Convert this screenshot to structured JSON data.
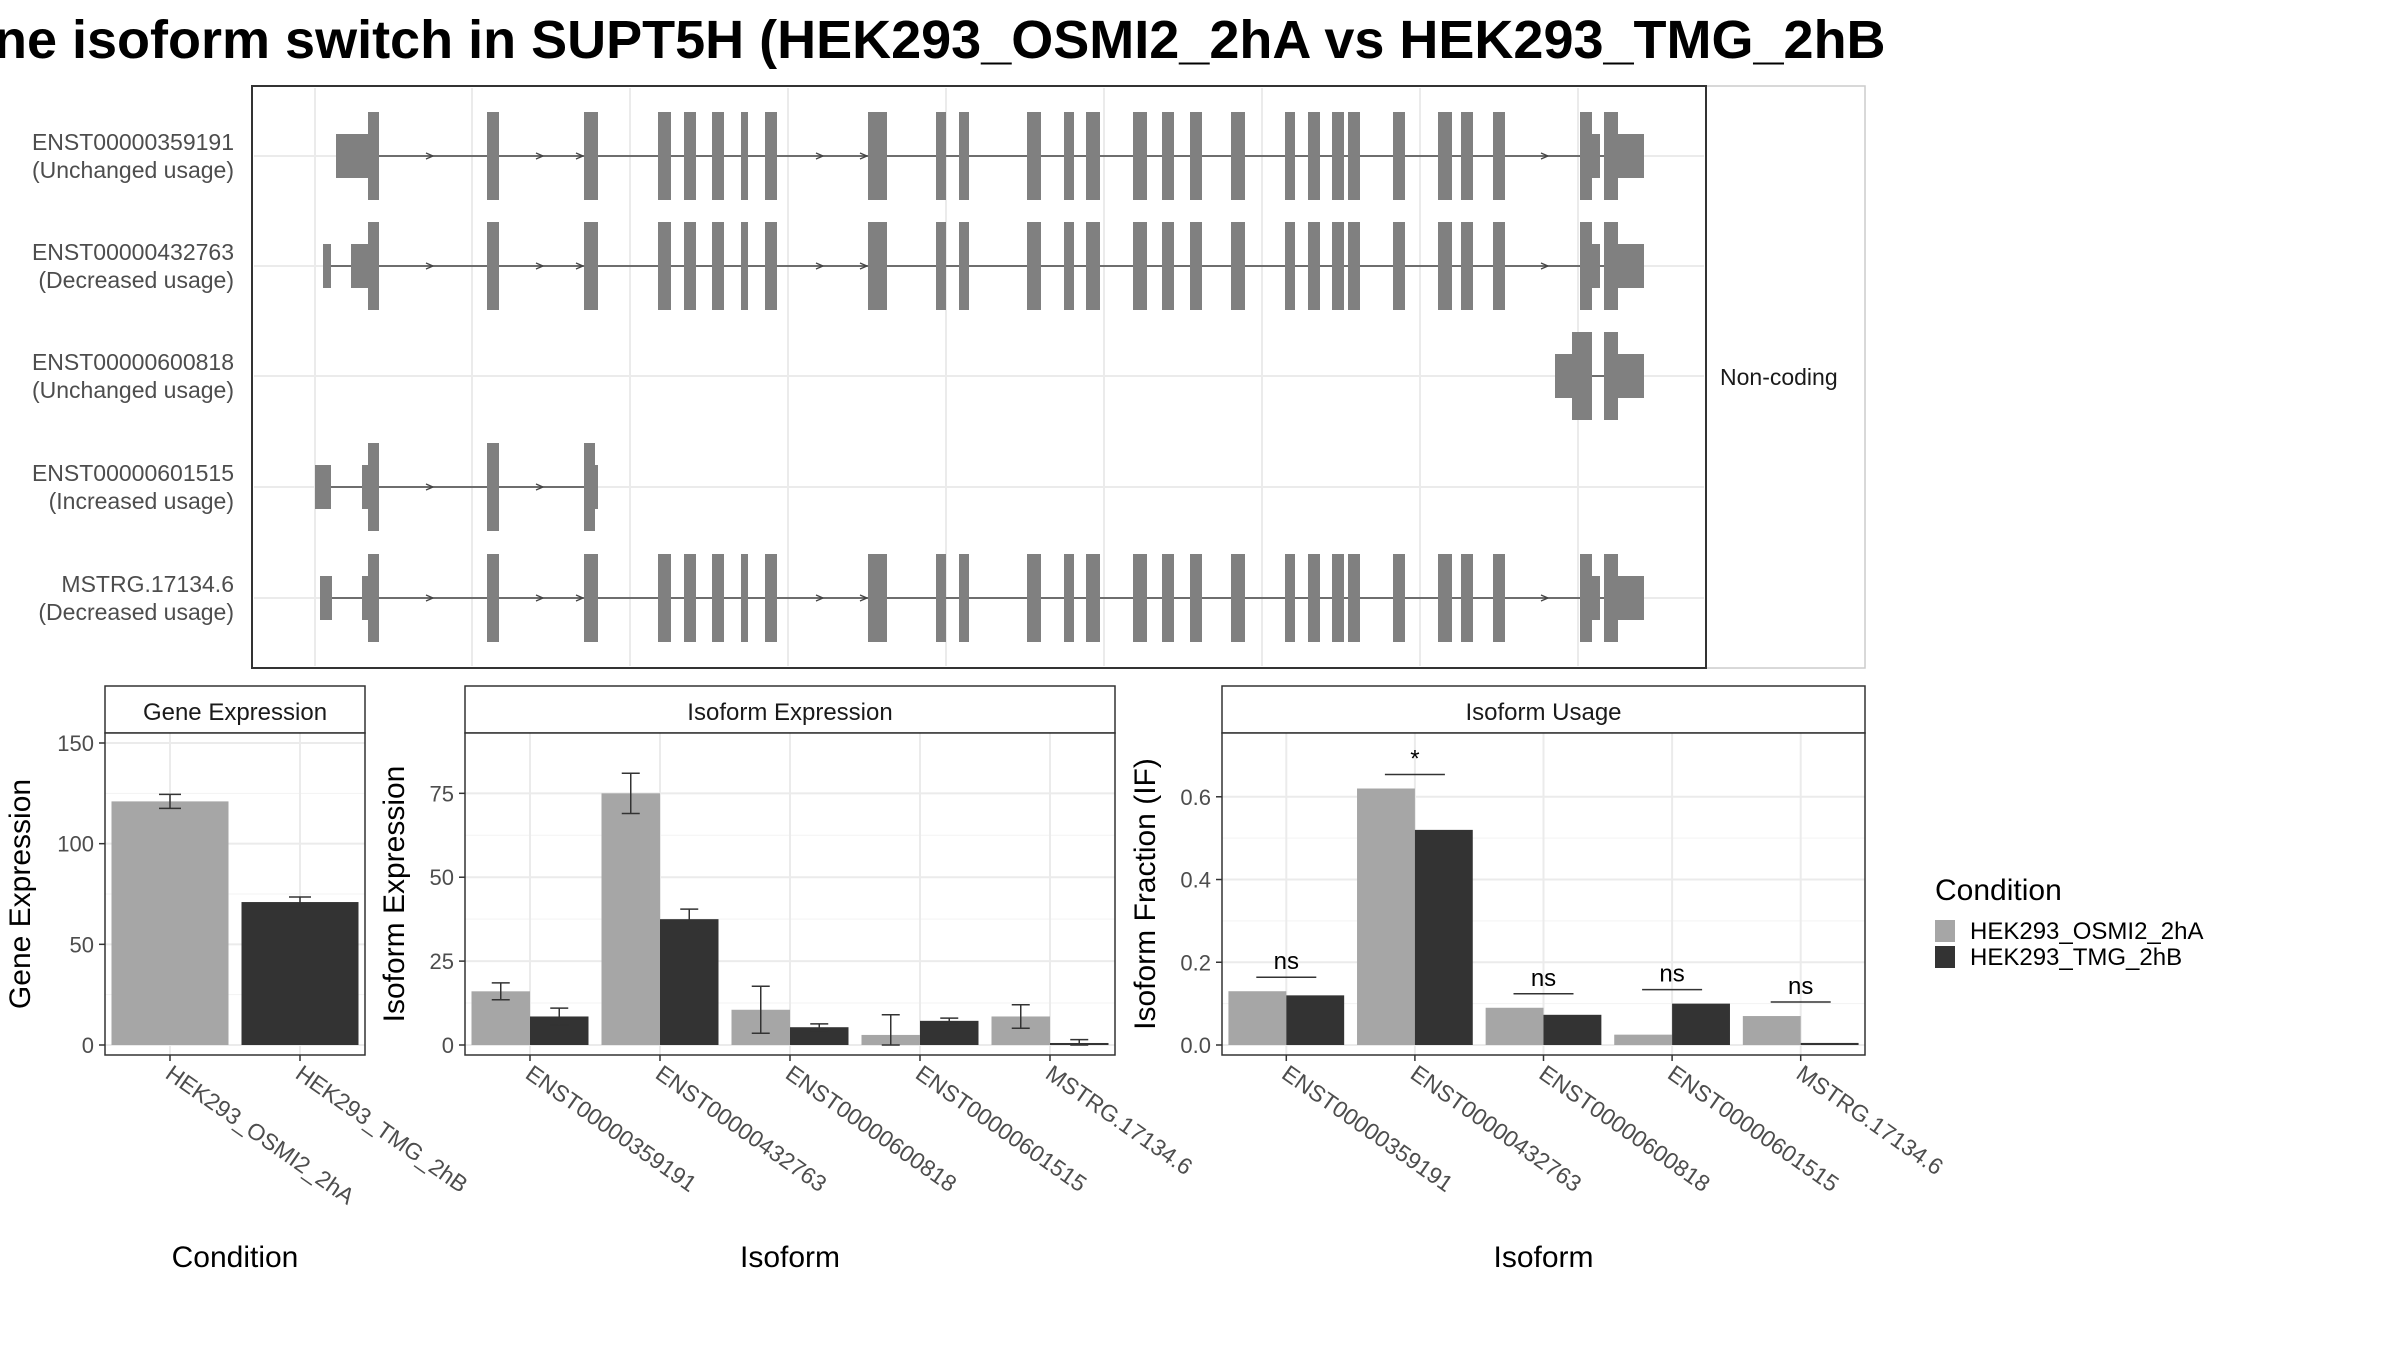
{
  "page": {
    "title": "ne isoform switch in SUPT5H (HEK293_OSMI2_2hA vs HEK293_TMG_2hB"
  },
  "colors": {
    "condition_a": "#a6a6a6",
    "condition_b": "#333333",
    "transcript": "#808080",
    "panel_border": "#333333",
    "grid": "#ebebeb"
  },
  "structure_panel": {
    "facet_label": "Non-coding",
    "transcripts": [
      {
        "id": "ENST00000359191",
        "usage": "(Unchanged usage)",
        "coding": true
      },
      {
        "id": "ENST00000432763",
        "usage": "(Decreased usage)",
        "coding": true
      },
      {
        "id": "ENST00000600818",
        "usage": "(Unchanged usage)",
        "coding": false
      },
      {
        "id": "ENST00000601515",
        "usage": "(Increased usage)",
        "coding": true
      },
      {
        "id": "MSTRG.17134.6",
        "usage": "(Decreased usage)",
        "coding": true
      }
    ]
  },
  "legend": {
    "title": "Condition",
    "items": [
      "HEK293_OSMI2_2hA",
      "HEK293_TMG_2hB"
    ]
  },
  "chart_data": [
    {
      "type": "bar",
      "title": "Gene Expression",
      "xlabel": "Condition",
      "ylabel": "Gene Expression",
      "ylim": [
        0,
        150
      ],
      "yticks": [
        0,
        50,
        100,
        150
      ],
      "grid": true,
      "categories": [
        "HEK293_OSMI2_2hA",
        "HEK293_TMG_2hB"
      ],
      "values": [
        121,
        71
      ],
      "errors": [
        3.5,
        2.5
      ]
    },
    {
      "type": "bar",
      "title": "Isoform Expression",
      "xlabel": "Isoform",
      "ylabel": "Isoform Expression",
      "ylim": [
        0,
        90
      ],
      "yticks": [
        0,
        25,
        50,
        75
      ],
      "grid": true,
      "categories": [
        "ENST00000359191",
        "ENST00000432763",
        "ENST00000600818",
        "ENST00000601515",
        "MSTRG.17134.6"
      ],
      "series": [
        {
          "name": "HEK293_OSMI2_2hA",
          "values": [
            16,
            75,
            10.5,
            3,
            8.5
          ],
          "errors": [
            2.5,
            6,
            7,
            6,
            3.5
          ]
        },
        {
          "name": "HEK293_TMG_2hB",
          "values": [
            8.5,
            37.5,
            5.3,
            7.2,
            0.6
          ],
          "errors": [
            2.5,
            3,
            1,
            0.8,
            1
          ]
        }
      ]
    },
    {
      "type": "bar",
      "title": "Isoform Usage",
      "xlabel": "Isoform",
      "ylabel": "Isoform Fraction (IF)",
      "ylim": [
        0,
        0.73
      ],
      "yticks": [
        0.0,
        0.2,
        0.4,
        0.6
      ],
      "grid": true,
      "categories": [
        "ENST00000359191",
        "ENST00000432763",
        "ENST00000600818",
        "ENST00000601515",
        "MSTRG.17134.6"
      ],
      "series": [
        {
          "name": "HEK293_OSMI2_2hA",
          "values": [
            0.13,
            0.62,
            0.09,
            0.025,
            0.07
          ]
        },
        {
          "name": "HEK293_TMG_2hB",
          "values": [
            0.12,
            0.52,
            0.073,
            0.1,
            0.005
          ]
        }
      ],
      "annotations": [
        "ns",
        "*",
        "ns",
        "ns",
        "ns"
      ]
    }
  ]
}
